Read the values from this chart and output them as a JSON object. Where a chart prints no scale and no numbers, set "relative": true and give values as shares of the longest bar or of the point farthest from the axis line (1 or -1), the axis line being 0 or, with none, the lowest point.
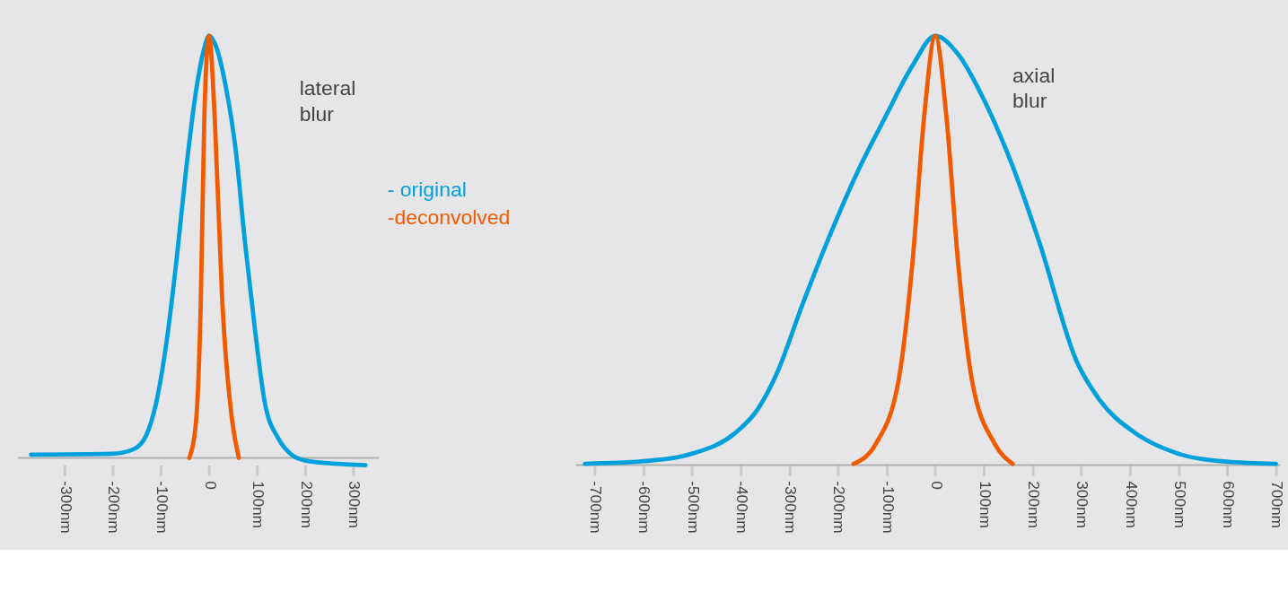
{
  "chart_data": [
    {
      "type": "line",
      "relative": true,
      "legend": "right",
      "annotations": [
        "lateral blur"
      ],
      "xlim": [
        -397,
        353
      ],
      "xticks": [
        {
          "value": -300,
          "label": "-300nm"
        },
        {
          "value": -200,
          "label": "-200nm"
        },
        {
          "value": -100,
          "label": "-100nm"
        },
        0,
        {
          "value": 100,
          "label": "100nm"
        },
        {
          "value": 200,
          "label": "200nm"
        },
        {
          "value": 300,
          "label": "300nm"
        }
      ],
      "series": [
        {
          "name": "- original",
          "color": "#00a0dc",
          "x": [
            -370,
            -202,
            -158,
            -130,
            -110,
            -89,
            -68,
            -48,
            -27,
            -10,
            0,
            14,
            34,
            55,
            75,
            96,
            116,
            144,
            171,
            199,
            253,
            325
          ],
          "values": [
            0.008,
            0.01,
            0.02,
            0.055,
            0.13,
            0.27,
            0.465,
            0.68,
            0.87,
            0.97,
            1,
            0.976,
            0.884,
            0.733,
            0.507,
            0.298,
            0.13,
            0.046,
            0.008,
            -0.006,
            -0.013,
            -0.017
          ]
        },
        {
          "name": "-deconvolved",
          "color": "#f05a00",
          "x": [
            -41,
            -27,
            -17,
            -10,
            0,
            12,
            27,
            48,
            62
          ],
          "values": [
            0,
            0.088,
            0.38,
            0.8,
            1,
            0.8,
            0.38,
            0.088,
            0
          ]
        }
      ]
    },
    {
      "type": "line",
      "relative": true,
      "annotations": [
        "axial blur"
      ],
      "xlim": [
        -739,
        709
      ],
      "xticks": [
        {
          "value": -700,
          "label": "-700nm"
        },
        {
          "value": -600,
          "label": "-600nm"
        },
        {
          "value": -500,
          "label": "-500nm"
        },
        {
          "value": -400,
          "label": "-400nm"
        },
        {
          "value": -300,
          "label": "-300nm"
        },
        {
          "value": -200,
          "label": "-200nm"
        },
        {
          "value": -100,
          "label": "-100nm"
        },
        0,
        {
          "value": 100,
          "label": "100nm"
        },
        {
          "value": 200,
          "label": "200nm"
        },
        {
          "value": 300,
          "label": "300nm"
        },
        {
          "value": 400,
          "label": "400nm"
        },
        {
          "value": 500,
          "label": "500nm"
        },
        {
          "value": 600,
          "label": "600nm"
        },
        {
          "value": 700,
          "label": "700nm"
        }
      ],
      "series": [
        {
          "color": "#00a0dc",
          "x": [
            -720,
            -599,
            -496,
            -412,
            -365,
            -327,
            -271,
            -215,
            -159,
            -103,
            -47,
            0,
            47,
            103,
            159,
            215,
            290,
            337,
            412,
            496,
            599,
            700
          ],
          "values": [
            0.003,
            0.009,
            0.028,
            0.074,
            0.13,
            0.21,
            0.38,
            0.54,
            0.685,
            0.81,
            0.93,
            1,
            0.957,
            0.844,
            0.696,
            0.515,
            0.243,
            0.153,
            0.074,
            0.028,
            0.008,
            0.003
          ]
        },
        {
          "color": "#f05a00",
          "x": [
            -168,
            -122,
            -75,
            -47,
            -23,
            0,
            23,
            47,
            75,
            122,
            159
          ],
          "values": [
            0.003,
            0.05,
            0.2,
            0.47,
            0.81,
            1,
            0.81,
            0.47,
            0.2,
            0.05,
            0.003
          ]
        }
      ]
    }
  ]
}
